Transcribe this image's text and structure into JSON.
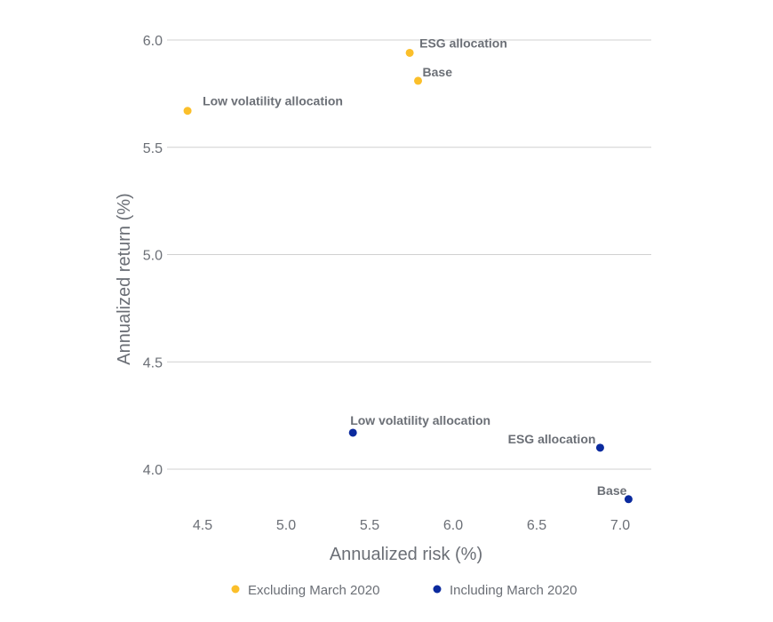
{
  "chart_data": {
    "type": "scatter",
    "title": "",
    "xlabel": "Annualized risk (%)",
    "ylabel": "Annualized return (%)",
    "xlim": [
      4.4,
      7.1
    ],
    "ylim": [
      3.9,
      6.0
    ],
    "xticks": [
      "4.5",
      "5.0",
      "5.5",
      "6.0",
      "6.5",
      "7.0"
    ],
    "yticks": [
      "4.0",
      "4.5",
      "5.0",
      "5.5",
      "6.0"
    ],
    "grid": "horizontal",
    "legend_position": "bottom",
    "series": [
      {
        "name": "Excluding March 2020",
        "color": "#FBBF2A",
        "points": [
          {
            "label": "Low volatility allocation",
            "x": 4.41,
            "y": 5.67
          },
          {
            "label": "ESG allocation",
            "x": 5.74,
            "y": 5.94
          },
          {
            "label": "Base",
            "x": 5.79,
            "y": 5.81
          }
        ]
      },
      {
        "name": "Including March 2020",
        "color": "#0B2A9E",
        "points": [
          {
            "label": "Low volatility allocation",
            "x": 5.4,
            "y": 4.17
          },
          {
            "label": "ESG allocation",
            "x": 6.88,
            "y": 4.1
          },
          {
            "label": "Base",
            "x": 7.05,
            "y": 3.86
          }
        ]
      }
    ]
  }
}
